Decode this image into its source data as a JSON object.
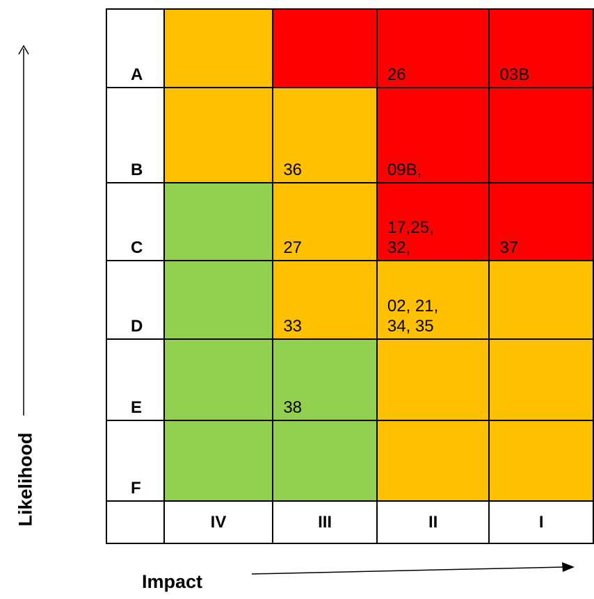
{
  "axes": {
    "y_label": "Likelihood",
    "x_label": "Impact"
  },
  "matrix": {
    "columns": [
      "IV",
      "III",
      "II",
      "I"
    ],
    "rows": [
      {
        "label": "A",
        "cells": [
          {
            "color": "#ffc000",
            "text": ""
          },
          {
            "color": "#ff0000",
            "text": ""
          },
          {
            "color": "#ff0000",
            "text": "26"
          },
          {
            "color": "#ff0000",
            "text": "03B"
          }
        ]
      },
      {
        "label": "B",
        "cells": [
          {
            "color": "#ffc000",
            "text": ""
          },
          {
            "color": "#ffc000",
            "text": "36"
          },
          {
            "color": "#ff0000",
            "text": "09B,"
          },
          {
            "color": "#ff0000",
            "text": ""
          }
        ]
      },
      {
        "label": "C",
        "cells": [
          {
            "color": "#92d050",
            "text": ""
          },
          {
            "color": "#ffc000",
            "text": "27"
          },
          {
            "color": "#ff0000",
            "text": "17,25,\n32,"
          },
          {
            "color": "#ff0000",
            "text": "37"
          }
        ]
      },
      {
        "label": "D",
        "cells": [
          {
            "color": "#92d050",
            "text": ""
          },
          {
            "color": "#ffc000",
            "text": "33"
          },
          {
            "color": "#ffc000",
            "text": "02, 21,\n34, 35"
          },
          {
            "color": "#ffc000",
            "text": ""
          }
        ]
      },
      {
        "label": "E",
        "cells": [
          {
            "color": "#92d050",
            "text": ""
          },
          {
            "color": "#92d050",
            "text": "38"
          },
          {
            "color": "#ffc000",
            "text": ""
          },
          {
            "color": "#ffc000",
            "text": ""
          }
        ]
      },
      {
        "label": "F",
        "cells": [
          {
            "color": "#92d050",
            "text": ""
          },
          {
            "color": "#92d050",
            "text": ""
          },
          {
            "color": "#ffc000",
            "text": ""
          },
          {
            "color": "#ffc000",
            "text": ""
          }
        ]
      }
    ]
  },
  "colors": {
    "high": "#ff0000",
    "medium": "#ffc000",
    "low": "#92d050"
  }
}
